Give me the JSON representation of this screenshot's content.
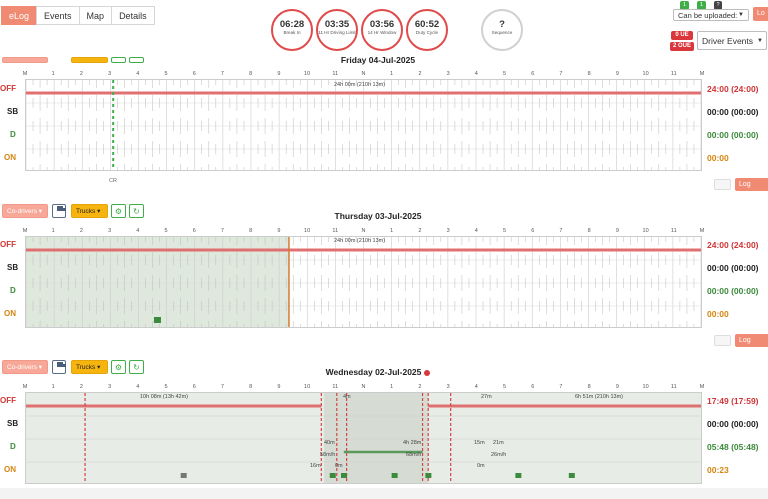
{
  "tabs": [
    {
      "label": "eLog",
      "active": true
    },
    {
      "label": "Events",
      "active": false
    },
    {
      "label": "Map",
      "active": false
    },
    {
      "label": "Details",
      "active": false
    }
  ],
  "gauges": [
    {
      "value": "06:28",
      "label": "Break In",
      "progress": 0.45
    },
    {
      "value": "03:35",
      "label": "11 Hr Driving Limit",
      "progress": 0.33
    },
    {
      "value": "03:56",
      "label": "14 Hr Window",
      "progress": 0.72
    },
    {
      "value": "60:52",
      "label": "Duty Cycle",
      "progress": 0.85
    },
    {
      "value": "?",
      "label": "Sequence",
      "progress": 0
    }
  ],
  "top_right": {
    "badges": [
      "1",
      "1",
      "?"
    ],
    "upload_select": "Can be uploaded:",
    "ue_badge": "0 UE",
    "oue_badge": "2 OUE",
    "events_select": "Driver Events",
    "log_btn": "Lo"
  },
  "toolbar": {
    "codrivers": "Co-drivers",
    "trucks": "Trucks"
  },
  "hours": [
    "M",
    "1",
    "2",
    "3",
    "4",
    "5",
    "6",
    "7",
    "8",
    "9",
    "10",
    "11",
    "N",
    "1",
    "2",
    "3",
    "4",
    "5",
    "6",
    "7",
    "8",
    "9",
    "10",
    "11",
    "M"
  ],
  "rows": [
    "OFF",
    "SB",
    "D",
    "ON"
  ],
  "log_events_label": "Log Events",
  "days": [
    {
      "title": "Friday 04-Jul-2025",
      "flag": false,
      "summary_label": "24h 00m (210h 13m)",
      "cr_label": "CR",
      "totals": {
        "off": "24:00 (24:00)",
        "sb": "00:00 (00:00)",
        "d": "00:00 (00:00)",
        "on": "00:00"
      }
    },
    {
      "title": "Thursday 03-Jul-2025",
      "flag": false,
      "summary_label": "24h 00m (210h 13m)",
      "totals": {
        "off": "24:00 (24:00)",
        "sb": "00:00 (00:00)",
        "d": "00:00 (00:00)",
        "on": "00:00"
      }
    },
    {
      "title": "Wednesday 02-Jul-2025",
      "flag": true,
      "summary_label": "10h 08m (13h 42m)",
      "summary_label_2": "6h 51m (210h 13m)",
      "segment_labels": [
        "40m",
        "58m/h",
        "4h 28m",
        "68m/h",
        "15m",
        "21m",
        "26m/h",
        "16m",
        "0m",
        "0m",
        "27m",
        "4m"
      ],
      "totals": {
        "off": "17:49 (17:59)",
        "sb": "00:00 (00:00)",
        "d": "05:48 (05:48)",
        "on": "00:23"
      }
    }
  ],
  "colors": {
    "accent": "#f08a73",
    "off": "#d03535",
    "drive": "#3c8a3c",
    "on_duty": "#d68510",
    "trucks": "#f6b40e"
  }
}
